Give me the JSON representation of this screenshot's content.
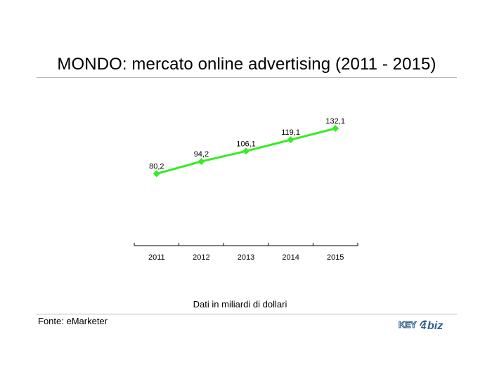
{
  "chart_data": {
    "type": "line",
    "title": "MONDO: mercato online advertising (2011 - 2015)",
    "categories": [
      "2011",
      "2012",
      "2013",
      "2014",
      "2015"
    ],
    "series": [
      {
        "values": [
          80.2,
          94.2,
          106.1,
          119.1,
          132.1
        ]
      }
    ],
    "data_labels": [
      "80,2",
      "94,2",
      "106,1",
      "119,1",
      "132,1"
    ],
    "note": "Dati in miliardi di dollari",
    "line_color": "#33ee22",
    "marker": "diamond"
  },
  "footer": {
    "source": "Fonte: eMarketer",
    "logo_text": "KEY4biz"
  }
}
